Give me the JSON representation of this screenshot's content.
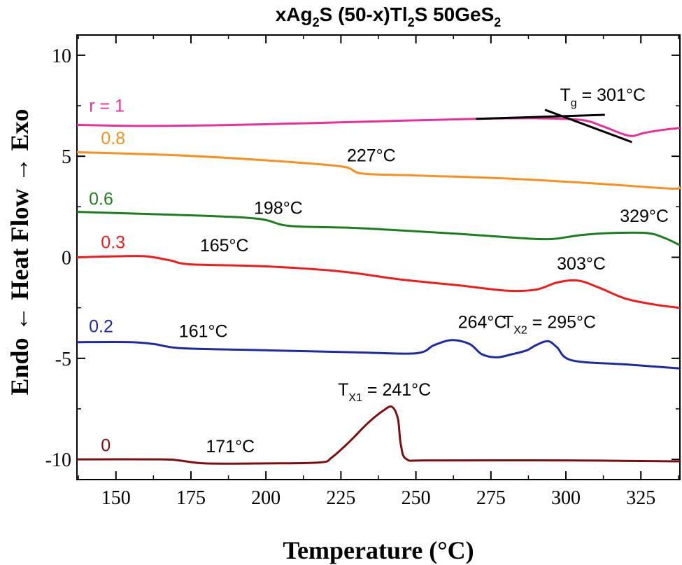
{
  "chart_data": {
    "type": "line",
    "title": "xAg2S (50-x)Tl2S 50GeS2",
    "title_parts": {
      "a": "xAg",
      "s1": "2",
      "b": "S (50-x)Tl",
      "s2": "2",
      "c": "S 50GeS",
      "s3": "2"
    },
    "xlabel": "Temperature (°C)",
    "ylabel": "Endo ← Heat Flow → Exo",
    "xlim": [
      137,
      338
    ],
    "ylim": [
      -11,
      11
    ],
    "x_ticks": [
      150,
      175,
      200,
      225,
      250,
      275,
      300,
      325
    ],
    "y_ticks": [
      10,
      5,
      0,
      -5,
      -10
    ],
    "y_tick_labels": [
      "10",
      "5",
      "0",
      "-5",
      "-10"
    ],
    "grid": false,
    "series": [
      {
        "name": "r = 1",
        "color": "#e8309a",
        "x": [
          137,
          160,
          190,
          230,
          270,
          290,
          305,
          312,
          318,
          322,
          326,
          332,
          338
        ],
        "y": [
          6.55,
          6.5,
          6.55,
          6.7,
          6.85,
          6.88,
          6.8,
          6.5,
          6.15,
          6.0,
          6.15,
          6.3,
          6.4
        ]
      },
      {
        "name": "0.8",
        "color": "#f7901e",
        "x": [
          137,
          170,
          200,
          225,
          232,
          250,
          280,
          310,
          335,
          338
        ],
        "y": [
          5.2,
          5.05,
          4.8,
          4.5,
          4.15,
          4.05,
          3.9,
          3.65,
          3.4,
          3.5
        ]
      },
      {
        "name": "0.6",
        "color": "#1e7d1e",
        "x": [
          137,
          180,
          198,
          208,
          230,
          260,
          285,
          295,
          305,
          315,
          327,
          333,
          338
        ],
        "y": [
          2.25,
          2.05,
          1.9,
          1.55,
          1.45,
          1.2,
          0.95,
          0.9,
          1.1,
          1.2,
          1.2,
          0.95,
          0.6
        ]
      },
      {
        "name": "0.3",
        "color": "#ee1c1c",
        "x": [
          137,
          150,
          160,
          168,
          175,
          200,
          225,
          245,
          265,
          280,
          290,
          297,
          304,
          311,
          320,
          330,
          338
        ],
        "y": [
          0.0,
          0.05,
          0.05,
          -0.15,
          -0.35,
          -0.45,
          -0.7,
          -1.1,
          -1.4,
          -1.65,
          -1.6,
          -1.25,
          -1.15,
          -1.5,
          -2.05,
          -2.35,
          -2.5
        ]
      },
      {
        "name": "0.2",
        "color": "#1e2a9e",
        "x": [
          137,
          155,
          163,
          172,
          200,
          230,
          250,
          256,
          262,
          268,
          272,
          277,
          282,
          287,
          290,
          294,
          297,
          302,
          320,
          338
        ],
        "y": [
          -4.2,
          -4.2,
          -4.3,
          -4.5,
          -4.6,
          -4.7,
          -4.75,
          -4.35,
          -4.1,
          -4.3,
          -4.8,
          -4.95,
          -4.8,
          -4.6,
          -4.35,
          -4.15,
          -4.45,
          -5.1,
          -5.3,
          -5.5
        ]
      },
      {
        "name": "0",
        "color": "#7a1010",
        "x": [
          137,
          165,
          171,
          180,
          200,
          218,
          222,
          228,
          234,
          239,
          242,
          244,
          245,
          247,
          255,
          300,
          338
        ],
        "y": [
          -10.0,
          -10.0,
          -10.05,
          -10.2,
          -10.2,
          -10.15,
          -9.9,
          -9.1,
          -8.2,
          -7.6,
          -7.4,
          -8.0,
          -9.3,
          -10.0,
          -10.05,
          -10.05,
          -10.1
        ]
      }
    ],
    "series_labels": [
      {
        "text": "r = 1",
        "x": 141,
        "y": 7.2
      },
      {
        "text": "0.8",
        "x": 145,
        "y": 5.6
      },
      {
        "text": "0.6",
        "x": 141,
        "y": 2.6
      },
      {
        "text": "0.3",
        "x": 145,
        "y": 0.45
      },
      {
        "text": "0.2",
        "x": 141,
        "y": -3.7
      },
      {
        "text": "0",
        "x": 145,
        "y": -9.6
      }
    ],
    "tangent_lines": [
      {
        "x": [
          270,
          313
        ],
        "y": [
          6.85,
          7.05
        ]
      },
      {
        "x": [
          293,
          322
        ],
        "y": [
          7.3,
          5.7
        ]
      }
    ],
    "annotations": [
      {
        "text": "T",
        "sub": "g",
        "rest": " = 301°C",
        "x": 298,
        "y": 7.75
      },
      {
        "text": "227°C",
        "x": 227,
        "y": 4.75
      },
      {
        "text": "198°C",
        "x": 196,
        "y": 2.15
      },
      {
        "text": "329°C",
        "x": 318,
        "y": 1.75
      },
      {
        "text": "165°C",
        "x": 178,
        "y": 0.3
      },
      {
        "text": "303°C",
        "x": 297,
        "y": -0.6
      },
      {
        "text": "264°C",
        "x": 264,
        "y": -3.5
      },
      {
        "text": "T",
        "sub": "X2",
        "rest": " = 295°C",
        "x": 279,
        "y": -3.5
      },
      {
        "text": "161°C",
        "x": 171,
        "y": -3.95
      },
      {
        "text": "T",
        "sub": "X1",
        "rest": " = 241°C",
        "x": 224,
        "y": -6.85
      },
      {
        "text": "171°C",
        "x": 180,
        "y": -9.65
      }
    ]
  }
}
